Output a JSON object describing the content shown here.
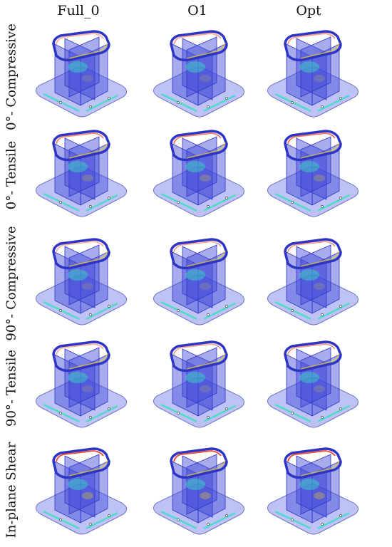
{
  "columns": [
    "Full_0",
    "O1",
    "Opt"
  ],
  "rows": [
    "0°- Compressive",
    "0°- Tensile",
    "90°- Compressive",
    "90°- Tensile",
    "In-plane Shear"
  ],
  "colors": {
    "base": "#b8bcf3",
    "base_edge": "#5d62c4",
    "panel": "#3f47d8",
    "frame": "#2c35c6",
    "stress_high": "#e8402a",
    "stress_mid": "#f0d21c",
    "stress_low": "#35e0c0"
  }
}
